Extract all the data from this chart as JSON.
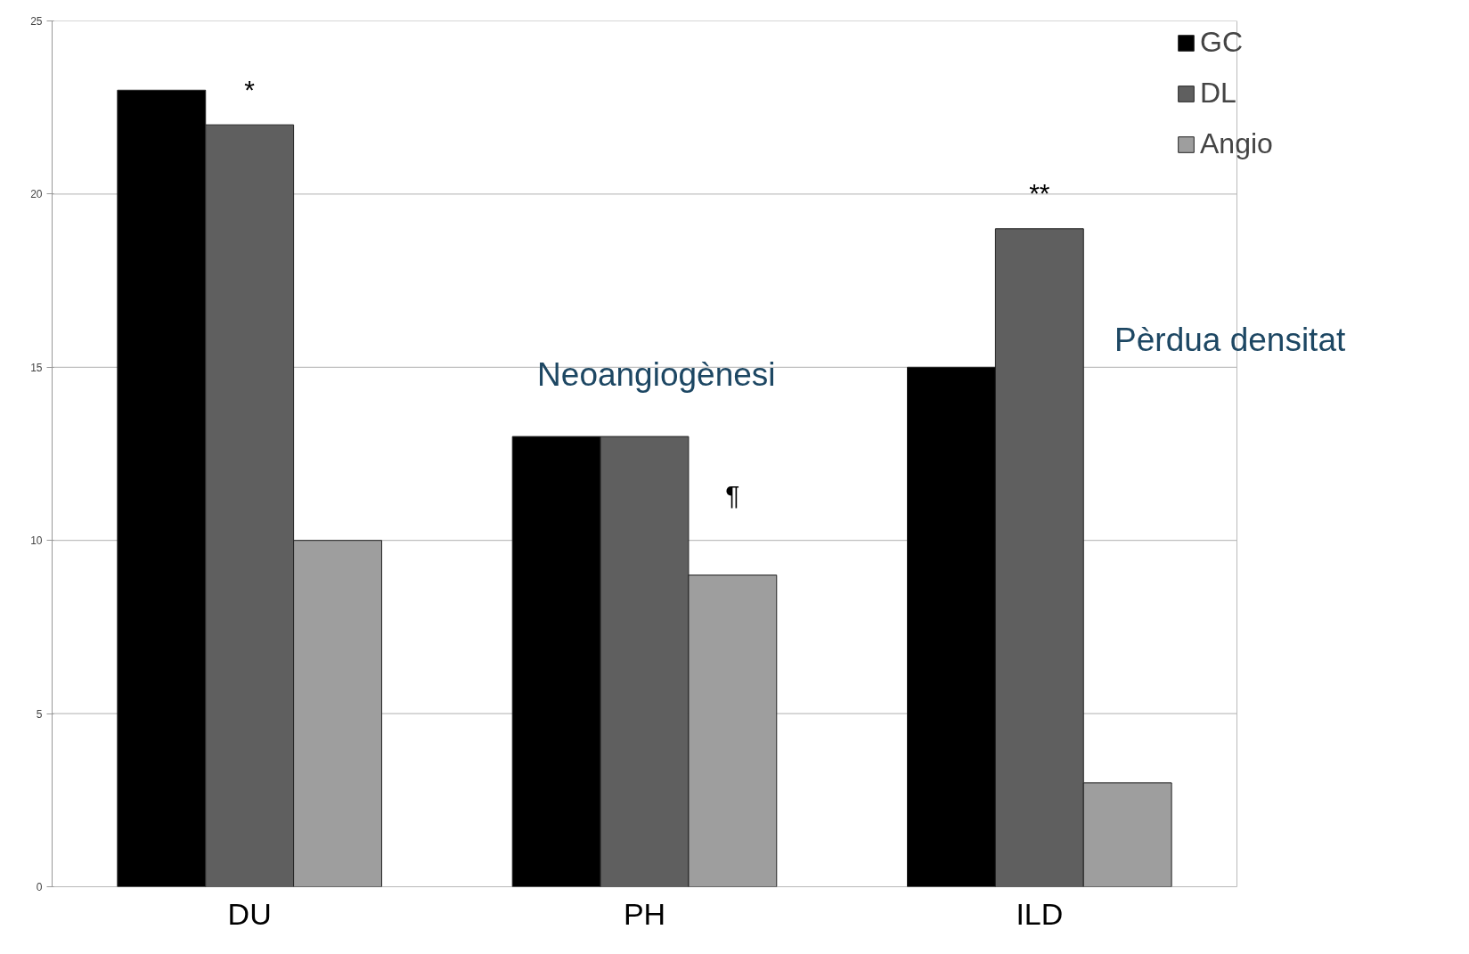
{
  "chart_data": {
    "type": "bar",
    "categories": [
      "DU",
      "PH",
      "ILD"
    ],
    "series": [
      {
        "name": "GC",
        "color": "#000000",
        "values": [
          23,
          13,
          15
        ]
      },
      {
        "name": "DL",
        "color": "#5f5f5f",
        "values": [
          22,
          13,
          19
        ]
      },
      {
        "name": "Angio",
        "color": "#9e9e9e",
        "values": [
          10,
          9,
          3
        ]
      }
    ],
    "ylim": [
      0,
      25
    ],
    "yticks": [
      0,
      5,
      10,
      15,
      20,
      25
    ],
    "grid": "y",
    "legend": "top right",
    "annotations": [
      "*",
      "¶",
      "**",
      "Neoangiogènesi",
      "Pèrdua densitat"
    ]
  }
}
